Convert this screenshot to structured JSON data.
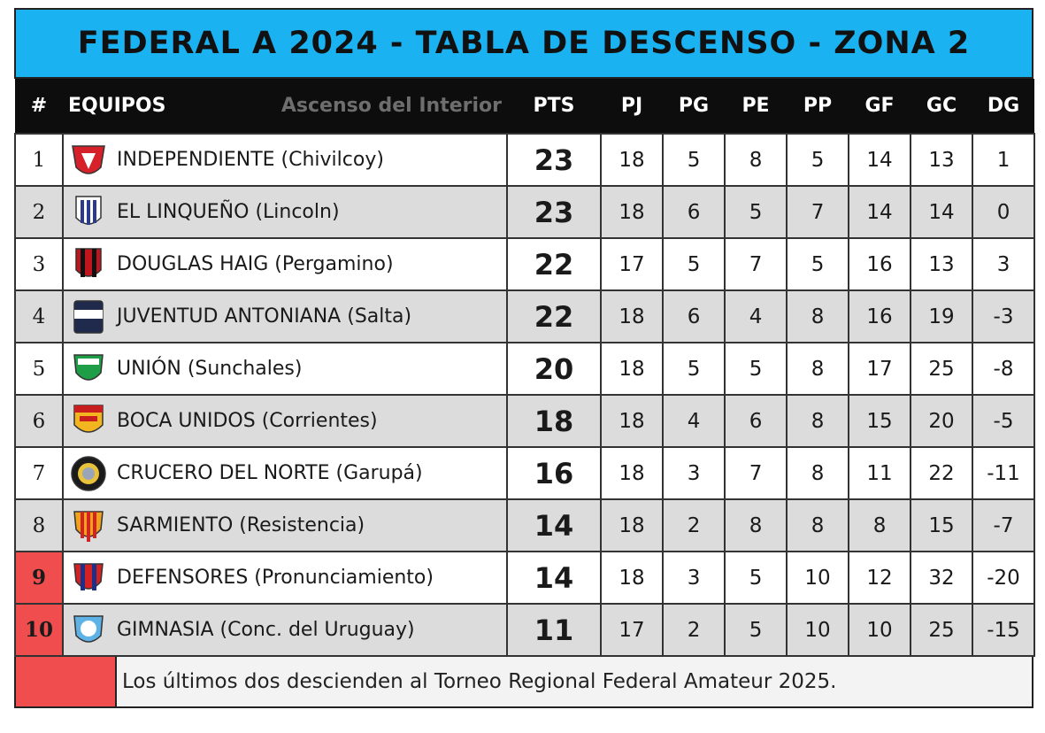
{
  "title": "FEDERAL A 2024 - TABLA DE DESCENSO - ZONA 2",
  "headers": {
    "pos": "#",
    "team": "EQUIPOS",
    "source": "Ascenso del Interior",
    "pts": "PTS",
    "pj": "PJ",
    "pg": "PG",
    "pe": "PE",
    "pp": "PP",
    "gf": "GF",
    "gc": "GC",
    "dg": "DG"
  },
  "rows": [
    {
      "pos": "1",
      "team": "INDEPENDIENTE (Chivilcoy)",
      "pts": "23",
      "pj": "18",
      "pg": "5",
      "pe": "8",
      "pp": "5",
      "gf": "14",
      "gc": "13",
      "dg": "1",
      "crest": "independiente-crest-icon",
      "crest_colors": [
        "#d6202a",
        "#ffffff"
      ]
    },
    {
      "pos": "2",
      "team": "EL LINQUEÑO (Lincoln)",
      "pts": "23",
      "pj": "18",
      "pg": "6",
      "pe": "5",
      "pp": "7",
      "gf": "14",
      "gc": "14",
      "dg": "0",
      "crest": "linqueno-crest-icon",
      "crest_colors": [
        "#2b3a8c",
        "#ffffff"
      ]
    },
    {
      "pos": "3",
      "team": "DOUGLAS HAIG (Pergamino)",
      "pts": "22",
      "pj": "17",
      "pg": "5",
      "pe": "7",
      "pp": "5",
      "gf": "16",
      "gc": "13",
      "dg": "3",
      "crest": "douglas-haig-crest-icon",
      "crest_colors": [
        "#c0151c",
        "#111111"
      ]
    },
    {
      "pos": "4",
      "team": "JUVENTUD ANTONIANA (Salta)",
      "pts": "22",
      "pj": "18",
      "pg": "6",
      "pe": "4",
      "pp": "8",
      "gf": "16",
      "gc": "19",
      "dg": "-3",
      "crest": "juventud-antoniana-crest-icon",
      "crest_colors": [
        "#1f2a4d",
        "#ffffff"
      ]
    },
    {
      "pos": "5",
      "team": "UNIÓN (Sunchales)",
      "pts": "20",
      "pj": "18",
      "pg": "5",
      "pe": "5",
      "pp": "8",
      "gf": "17",
      "gc": "25",
      "dg": "-8",
      "crest": "union-sunchales-crest-icon",
      "crest_colors": [
        "#1e9e46",
        "#ffffff"
      ]
    },
    {
      "pos": "6",
      "team": "BOCA UNIDOS (Corrientes)",
      "pts": "18",
      "pj": "18",
      "pg": "4",
      "pe": "6",
      "pp": "8",
      "gf": "15",
      "gc": "20",
      "dg": "-5",
      "crest": "boca-unidos-crest-icon",
      "crest_colors": [
        "#f2b51f",
        "#c81e1e"
      ]
    },
    {
      "pos": "7",
      "team": "CRUCERO DEL NORTE (Garupá)",
      "pts": "16",
      "pj": "18",
      "pg": "3",
      "pe": "7",
      "pp": "8",
      "gf": "11",
      "gc": "22",
      "dg": "-11",
      "crest": "crucero-del-norte-crest-icon",
      "crest_colors": [
        "#1b1b1b",
        "#e8c23a"
      ]
    },
    {
      "pos": "8",
      "team": "SARMIENTO (Resistencia)",
      "pts": "14",
      "pj": "18",
      "pg": "2",
      "pe": "8",
      "pp": "8",
      "gf": "8",
      "gc": "15",
      "dg": "-7",
      "crest": "sarmiento-crest-icon",
      "crest_colors": [
        "#f0a21a",
        "#d42121"
      ]
    },
    {
      "pos": "9",
      "team": "DEFENSORES (Pronunciamiento)",
      "pts": "14",
      "pj": "18",
      "pg": "3",
      "pe": "5",
      "pp": "10",
      "gf": "12",
      "gc": "32",
      "dg": "-20",
      "crest": "defensores-crest-icon",
      "crest_colors": [
        "#d42121",
        "#1d2f86"
      ]
    },
    {
      "pos": "10",
      "team": "GIMNASIA (Conc. del Uruguay)",
      "pts": "11",
      "pj": "17",
      "pg": "2",
      "pe": "5",
      "pp": "10",
      "gf": "10",
      "gc": "25",
      "dg": "-15",
      "crest": "gimnasia-crest-icon",
      "crest_colors": [
        "#5fb2e6",
        "#ffffff"
      ]
    }
  ],
  "relegation_color": "#f04e4e",
  "legend": {
    "text": "Los últimos dos descienden al Torneo Regional Federal Amateur 2025."
  }
}
